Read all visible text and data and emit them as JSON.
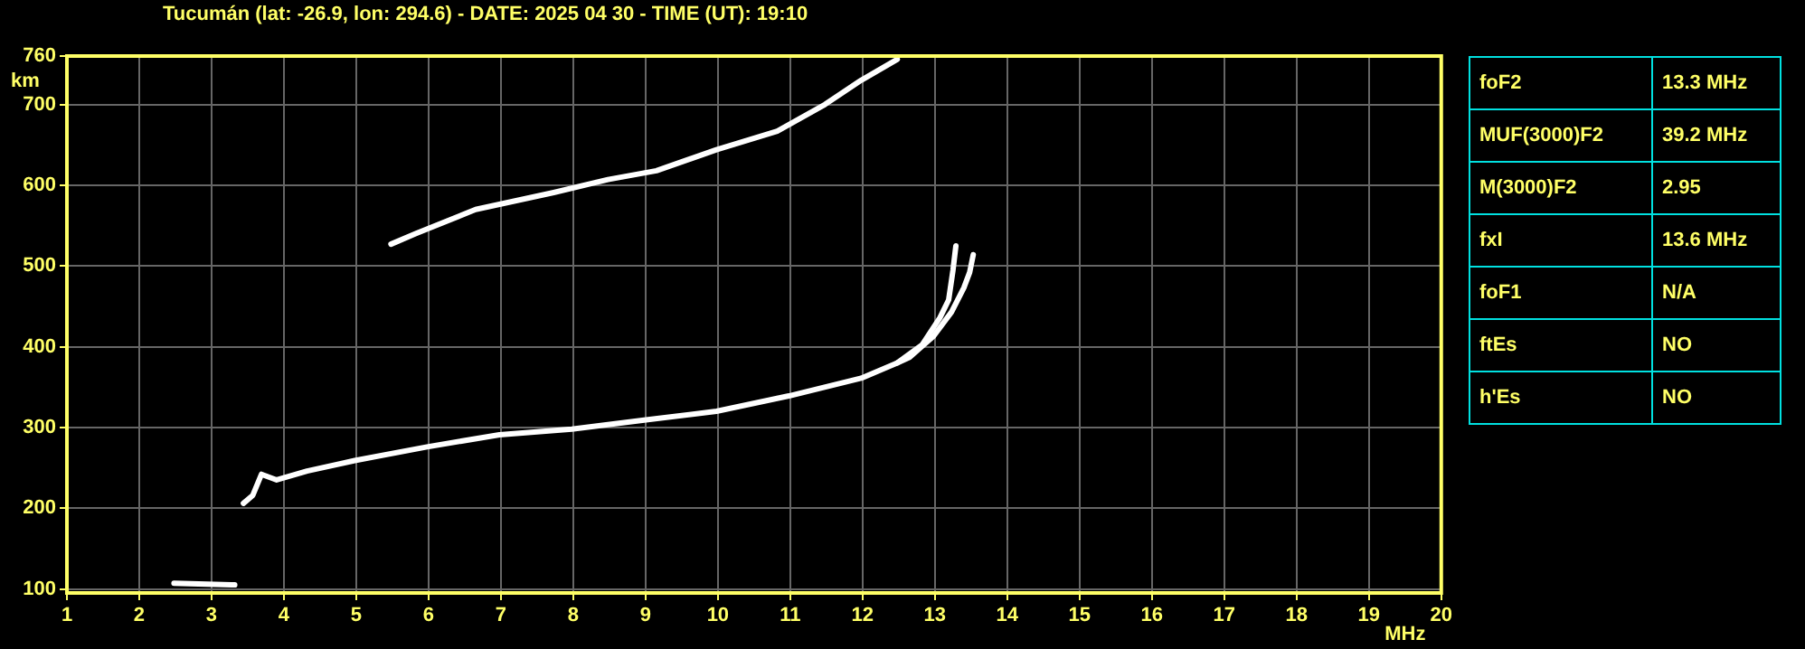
{
  "chart_data": [
    {
      "type": "line",
      "title": "Tucumán (lat: -26.9, lon: 294.6) - DATE: 2025 04 30 - TIME (UT): 19:10",
      "xlabel": "MHz",
      "ylabel": "km",
      "xlim": [
        1,
        20
      ],
      "xticks": [
        1,
        2,
        3,
        4,
        5,
        6,
        7,
        8,
        9,
        10,
        11,
        12,
        13,
        14,
        15,
        16,
        17,
        18,
        19,
        20
      ],
      "ylim": [
        95,
        760
      ],
      "yticks": [
        100,
        200,
        300,
        400,
        500,
        600,
        700,
        760
      ],
      "grid": true,
      "legend": false,
      "marker": "none",
      "line_style": "solid",
      "series": [
        {
          "color": "#ffffff",
          "x": [
            3.44,
            3.57,
            3.69,
            3.9,
            4.32,
            4.98,
            5.98,
            6.98,
            7.98,
            8.98,
            9.98,
            10.98,
            11.98,
            12.48,
            12.82,
            13.07,
            13.19,
            13.25,
            13.29
          ],
          "values": [
            206,
            216,
            242,
            235,
            246,
            259,
            276,
            291,
            298,
            309,
            320,
            339,
            361,
            380,
            402,
            436,
            458,
            495,
            525
          ]
        },
        {
          "color": "#ffffff",
          "x": [
            12.48,
            12.65,
            12.98,
            13.23,
            13.4,
            13.48,
            13.53
          ],
          "values": [
            380,
            387,
            413,
            443,
            473,
            492,
            514
          ]
        },
        {
          "color": "#ffffff",
          "x": [
            5.48,
            5.82,
            6.65,
            7.73,
            8.48,
            9.15,
            9.98,
            10.82,
            11.48,
            11.98,
            12.48
          ],
          "values": [
            527,
            540,
            570,
            591,
            607,
            618,
            644,
            667,
            700,
            730,
            756
          ]
        },
        {
          "color": "#ffffff",
          "x": [
            2.48,
            3.32
          ],
          "values": [
            107,
            105
          ]
        }
      ]
    },
    {
      "type": "other",
      "annotations": [
        "foF2",
        "13.3 MHz",
        "MUF(3000)F2",
        "39.2 MHz",
        "M(3000)F2",
        "2.95",
        "fxI",
        "13.6 MHz",
        "foF1",
        "N/A",
        "ftEs",
        "NO",
        "h'Es",
        "NO"
      ]
    }
  ]
}
